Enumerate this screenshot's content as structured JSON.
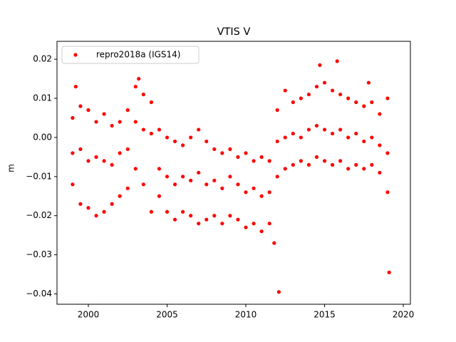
{
  "chart_data": {
    "type": "scatter",
    "title": "VTIS V",
    "y_label": "m",
    "legend_position": "upper left",
    "grid": false,
    "xlim": [
      1998.01,
      2020.45
    ],
    "ylim": [
      -0.04264,
      0.02458
    ],
    "xticks": [
      2000,
      2005,
      2010,
      2015,
      2020
    ],
    "yticks": [
      {
        "value": -0.04,
        "label": "−0.04"
      },
      {
        "value": -0.03,
        "label": "−0.03"
      },
      {
        "value": -0.02,
        "label": "−0.02"
      },
      {
        "value": -0.01,
        "label": "−0.01"
      },
      {
        "value": 0,
        "label": "0.00"
      },
      0.01,
      0.02
    ],
    "series": [
      {
        "name": "repro2018a (IGS14)",
        "color": "#ff0000",
        "x": [
          1999.0,
          1999.0,
          1999.0,
          1999.5,
          1999.5,
          1999.5,
          2000.0,
          2000.0,
          2000.0,
          2000.5,
          2000.5,
          2000.5,
          2001.0,
          2001.0,
          2001.0,
          2001.5,
          2001.5,
          2001.5,
          2002.0,
          2002.0,
          2002.0,
          2002.5,
          2002.5,
          2002.5,
          2003.0,
          2003.0,
          2003.0,
          2003.5,
          2003.5,
          2003.5,
          2004.0,
          2004.0,
          2004.0,
          2004.5,
          2004.5,
          2004.5,
          2005.0,
          2005.0,
          2005.0,
          2005.5,
          2005.5,
          2005.5,
          2006.0,
          2006.0,
          2006.0,
          2006.5,
          2006.5,
          2006.5,
          2007.0,
          2007.0,
          2007.0,
          2007.5,
          2007.5,
          2007.5,
          2008.0,
          2008.0,
          2008.0,
          2008.5,
          2008.5,
          2008.5,
          2009.0,
          2009.0,
          2009.0,
          2009.5,
          2009.5,
          2009.5,
          2010.0,
          2010.0,
          2010.0,
          2010.5,
          2010.5,
          2010.5,
          2011.0,
          2011.0,
          2011.0,
          2011.5,
          2011.5,
          2011.5,
          2012.0,
          2012.0,
          2012.0,
          2012.5,
          2012.5,
          2012.5,
          2013.0,
          2013.0,
          2013.0,
          2013.5,
          2013.5,
          2013.5,
          2014.0,
          2014.0,
          2014.0,
          2014.5,
          2014.5,
          2014.5,
          2015.0,
          2015.0,
          2015.0,
          2015.5,
          2015.5,
          2015.5,
          2016.0,
          2016.0,
          2016.0,
          2016.5,
          2016.5,
          2016.5,
          2017.0,
          2017.0,
          2017.0,
          2017.5,
          2017.5,
          2017.5,
          2018.0,
          2018.0,
          2018.0,
          2018.5,
          2018.5,
          2018.5,
          2019.0,
          2019.0,
          2019.0,
          2012.1,
          2019.1,
          2011.8,
          2015.8,
          2014.7,
          2003.2,
          1999.2,
          2017.8
        ],
        "y": [
          0.005,
          -0.004,
          -0.012,
          0.008,
          -0.003,
          -0.017,
          0.007,
          -0.006,
          -0.018,
          0.004,
          -0.005,
          -0.02,
          0.006,
          -0.006,
          -0.019,
          0.003,
          -0.007,
          -0.017,
          0.004,
          -0.004,
          -0.015,
          0.007,
          -0.003,
          -0.013,
          0.013,
          0.004,
          -0.008,
          0.011,
          0.002,
          -0.012,
          0.009,
          0.001,
          -0.019,
          0.002,
          -0.008,
          -0.015,
          0.0,
          -0.01,
          -0.019,
          -0.001,
          -0.012,
          -0.021,
          -0.002,
          -0.01,
          -0.019,
          0.0,
          -0.011,
          -0.02,
          0.002,
          -0.009,
          -0.022,
          -0.001,
          -0.012,
          -0.021,
          -0.003,
          -0.011,
          -0.02,
          -0.004,
          -0.013,
          -0.022,
          -0.003,
          -0.01,
          -0.02,
          -0.005,
          -0.012,
          -0.021,
          -0.004,
          -0.014,
          -0.023,
          -0.006,
          -0.013,
          -0.022,
          -0.005,
          -0.015,
          -0.024,
          -0.006,
          -0.014,
          -0.022,
          0.007,
          -0.001,
          -0.01,
          0.012,
          0.0,
          -0.008,
          0.009,
          0.001,
          -0.007,
          0.01,
          0.0,
          -0.006,
          0.011,
          0.002,
          -0.007,
          0.013,
          0.003,
          -0.005,
          0.014,
          0.002,
          -0.006,
          0.012,
          0.001,
          -0.007,
          0.011,
          0.002,
          -0.006,
          0.01,
          0.0,
          -0.008,
          0.009,
          0.001,
          -0.007,
          0.008,
          -0.001,
          -0.008,
          0.009,
          0.0,
          -0.007,
          0.006,
          -0.002,
          -0.009,
          0.01,
          -0.004,
          -0.014,
          -0.0395,
          -0.0345,
          -0.027,
          0.0195,
          0.0185,
          0.015,
          0.013,
          0.014
        ]
      }
    ]
  }
}
